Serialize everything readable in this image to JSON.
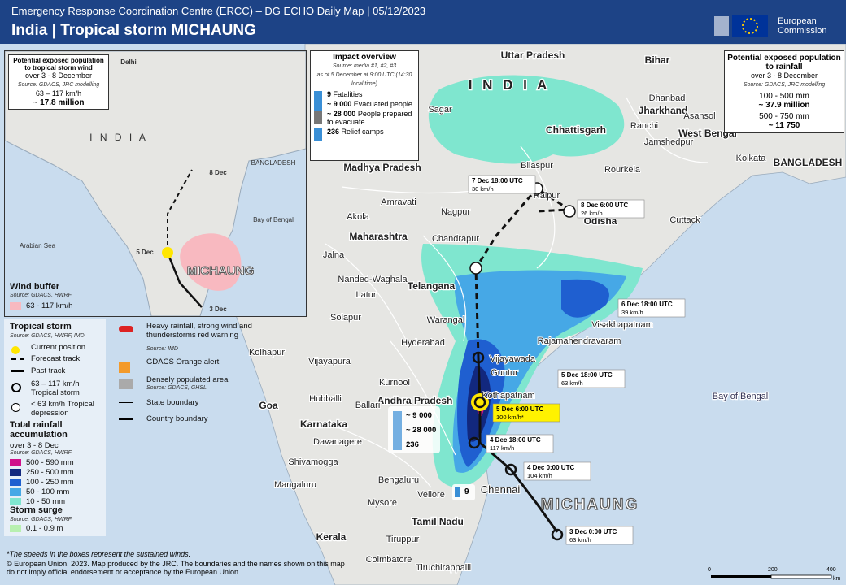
{
  "header": {
    "subtitle": "Emergency Response Coordination Centre (ERCC) – DG ECHO Daily Map | 05/12/2023",
    "title": "India | Tropical storm MICHAUNG",
    "logo": "European Commission"
  },
  "map": {
    "regions": [
      "Uttar Pradesh",
      "Bihar",
      "Jharkhand",
      "Chhattisgarh",
      "West Bengal",
      "Madhya Pradesh",
      "Odisha",
      "Maharashtra",
      "Telangana",
      "Andhra Pradesh",
      "Karnataka",
      "Goa",
      "Tamil Nadu",
      "Kerala",
      "BANGLADESH",
      "I N D I A",
      "Bay of Bengal"
    ],
    "cities": [
      "Sagar",
      "Dhanbad",
      "Ranchi",
      "Asansol",
      "Jamshedpur",
      "Kolkata",
      "Bilaspur",
      "Raipur",
      "Rourkela",
      "Cuttack",
      "Amravati",
      "Nagpur",
      "Akola",
      "Chandrapur",
      "Jalna",
      "Nanded-Waghala",
      "Latur",
      "Solapur",
      "Warangal",
      "Hyderabad",
      "Vijayawada",
      "Rajamahendravaram",
      "Visakhapatnam",
      "Guntur",
      "Kothapatnam",
      "Kurnool",
      "Kolhapur",
      "Vijayapura",
      "Hubballi",
      "Ballari",
      "Davanagere",
      "Shivamogga",
      "Mangaluru",
      "Bengaluru",
      "Vellore",
      "Chennai",
      "Mysore",
      "Tiruppur",
      "Coimbatore",
      "Tiruchirappalli"
    ],
    "storm_name": "MICHAUNG",
    "track_labels": [
      {
        "time": "7 Dec 18:00 UTC",
        "speed": "30 km/h"
      },
      {
        "time": "8 Dec 6:00 UTC",
        "speed": "26 km/h"
      },
      {
        "time": "6 Dec 18:00 UTC",
        "speed": "39 km/h"
      },
      {
        "time": "5 Dec 18:00 UTC",
        "speed": "63 km/h"
      },
      {
        "time": "5 Dec 6:00 UTC",
        "speed": "100 km/h*"
      },
      {
        "time": "4 Dec 18:00 UTC",
        "speed": "117 km/h"
      },
      {
        "time": "4 Dec 0:00 UTC",
        "speed": "104 km/h"
      },
      {
        "time": "3 Dec 0:00 UTC",
        "speed": "63 km/h"
      }
    ],
    "andhra_box": [
      "~ 9 000",
      "~ 28 000",
      "236"
    ],
    "tamil_box": "9"
  },
  "wind_inset": {
    "title": "Potential exposed population to tropical storm wind",
    "period": "over 3 - 8 December",
    "source": "Source: GDACS, JRC modelling",
    "range": "63 – 117 km/h",
    "value": "~ 17.8 million",
    "labels": [
      "Delhi",
      "I N D I A",
      "Bay of Bengal",
      "Arabian Sea",
      "BANGLADESH",
      "8 Dec",
      "5 Dec",
      "3 Dec",
      "MICHAUNG"
    ],
    "legend_title": "Wind buffer",
    "legend_source": "Source: GDACS, HWRF",
    "legend_item": "63 - 117 km/h"
  },
  "impact": {
    "title": "Impact overview",
    "source": "Source: media #1, #2, #3",
    "as_of": "as of 5 December at 9:00 UTC (14:30 local time)",
    "items": [
      {
        "value": "9",
        "label": "Fatalities"
      },
      {
        "value": "~ 9 000",
        "label": "Evacuated people"
      },
      {
        "value": "~ 28 000",
        "label": "People prepared to evacuate"
      },
      {
        "value": "236",
        "label": "Relief camps"
      }
    ]
  },
  "rain_box": {
    "title": "Potential exposed population to rainfall",
    "period": "over 3 - 8 December",
    "source": "Source: GDACS, JRC modelling",
    "rows": [
      {
        "range": "100 - 500 mm",
        "value": "~ 37.9 million"
      },
      {
        "range": "500 - 750 mm",
        "value": "~ 11 750"
      }
    ]
  },
  "legend": {
    "storm_title": "Tropical storm",
    "storm_source": "Source: GDACS, HWRF, IMD",
    "storm_items": [
      "Current position",
      "Forecast track",
      "Past track",
      "63 – 117 km/h Tropical storm",
      "< 63 km/h Tropical depression"
    ],
    "other_items": [
      "Heavy rainfall, strong wind and thunderstorms red warning",
      "GDACS Orange alert",
      "Densely populated area",
      "State boundary",
      "Country boundary"
    ],
    "warning_source": "Source: IMD",
    "populated_source": "Source: GDACS, GHSL",
    "rain_title": "Total rainfall accumulation",
    "rain_period": "over 3 - 8 Dec",
    "rain_source": "Source: GDACS, HWRF",
    "rain_classes": [
      "500 - 590 mm",
      "250 - 500 mm",
      "100 - 250 mm",
      "50 - 100 mm",
      "10 - 50 mm"
    ],
    "surge_title": "Storm surge",
    "surge_source": "Source: GDACS, HWRF",
    "surge_item": "0.1 - 0.9 m"
  },
  "footer": {
    "note": "*The speeds in the boxes represent the sustained winds.",
    "credit": "© European Union, 2023. Map produced by the JRC. The boundaries and the names shown on this map do not imply official endorsement or acceptance by the European Union.",
    "scale": [
      "0",
      "200",
      "400",
      "km"
    ]
  }
}
